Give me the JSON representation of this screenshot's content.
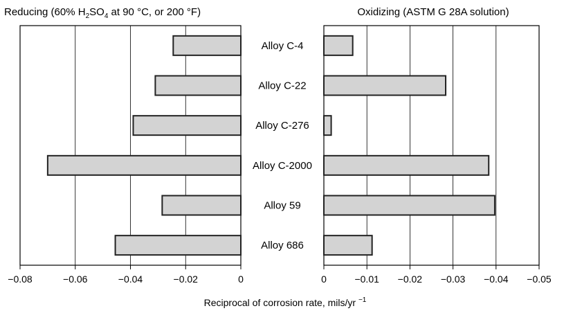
{
  "chart_data": [
    {
      "type": "bar",
      "orientation": "horizontal",
      "title": "Reducing (60% H2SO4 at 90 °C, or 200 °F)",
      "title_parts": {
        "pre": "Reducing (60% H",
        "sub1": "2",
        "mid": "SO",
        "sub2": "4",
        "post": " at 90 °C, or 200 °F)"
      },
      "categories": [
        "Alloy C-4",
        "Alloy C-22",
        "Alloy C-276",
        "Alloy C-2000",
        "Alloy 59",
        "Alloy 686"
      ],
      "values": [
        -0.0245,
        -0.031,
        -0.039,
        -0.07,
        -0.0285,
        -0.0455
      ],
      "xlim": [
        -0.08,
        0
      ],
      "xticks": [
        -0.08,
        -0.06,
        -0.04,
        -0.02,
        0
      ],
      "xtick_labels": [
        "−0.08",
        "−0.06",
        "−0.04",
        "−0.02",
        "0"
      ],
      "grid": true,
      "bar_color": "#d3d3d3"
    },
    {
      "type": "bar",
      "orientation": "horizontal",
      "title": "Oxidizing (ASTM G 28A solution)",
      "categories": [
        "Alloy C-4",
        "Alloy C-22",
        "Alloy C-276",
        "Alloy C-2000",
        "Alloy 59",
        "Alloy 686"
      ],
      "values": [
        -0.0067,
        -0.0283,
        -0.0017,
        -0.0383,
        -0.0397,
        -0.0112
      ],
      "xlim": [
        0,
        -0.05
      ],
      "xticks": [
        0,
        -0.01,
        -0.02,
        -0.03,
        -0.04,
        -0.05
      ],
      "xtick_labels": [
        "0",
        "−0.01",
        "−0.02",
        "−0.03",
        "−0.04",
        "−0.05"
      ],
      "grid": true,
      "bar_color": "#d3d3d3"
    }
  ],
  "xlabel": {
    "text": "Reciprocal of corrosion rate, mils/yr ",
    "sup": "−1"
  }
}
